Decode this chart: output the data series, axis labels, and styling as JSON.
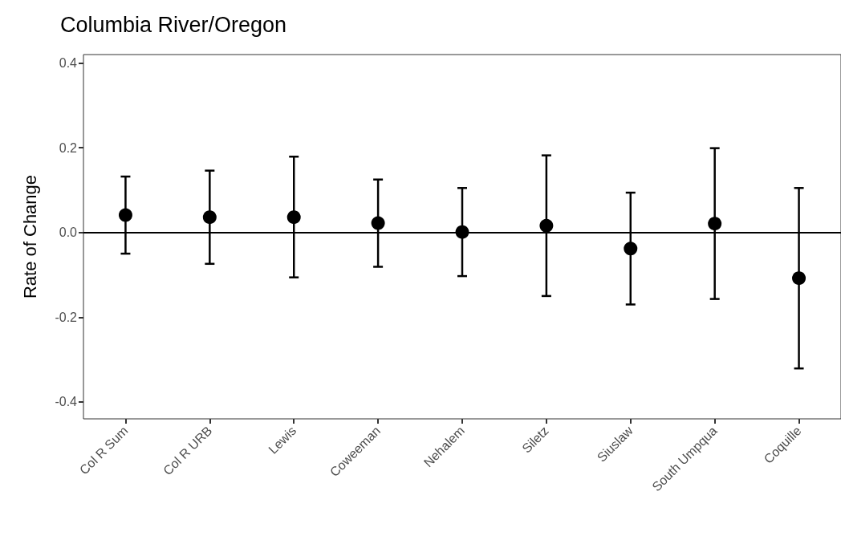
{
  "chart_data": {
    "type": "scatter",
    "title": "Columbia River/Oregon",
    "ylabel": "Rate of Change",
    "categories": [
      "Col R Sum",
      "Col R URB",
      "Lewis",
      "Coweeman",
      "Nehalem",
      "Siletz",
      "Siuslaw",
      "South Umpqua",
      "Coquille"
    ],
    "series": [
      {
        "color": "#000000",
        "values": [
          0.041,
          0.036,
          0.036,
          0.022,
          0.001,
          0.016,
          -0.038,
          0.021,
          -0.108
        ],
        "errors": [
          [
            -0.05,
            0.132
          ],
          [
            -0.074,
            0.146
          ],
          [
            -0.106,
            0.179
          ],
          [
            -0.081,
            0.125
          ],
          [
            -0.103,
            0.105
          ],
          [
            -0.15,
            0.182
          ],
          [
            -0.17,
            0.094
          ],
          [
            -0.157,
            0.199
          ],
          [
            -0.321,
            0.105
          ]
        ]
      }
    ],
    "ylim": [
      -0.44,
      0.42
    ],
    "yticks": [
      -0.4,
      -0.2,
      {
        "value": 0,
        "label": "0.0"
      },
      0.2,
      0.4
    ],
    "grid": false,
    "marker": "circle",
    "ref_lines": [
      {
        "axis": "y",
        "value": 0,
        "color": "#000000"
      }
    ]
  }
}
